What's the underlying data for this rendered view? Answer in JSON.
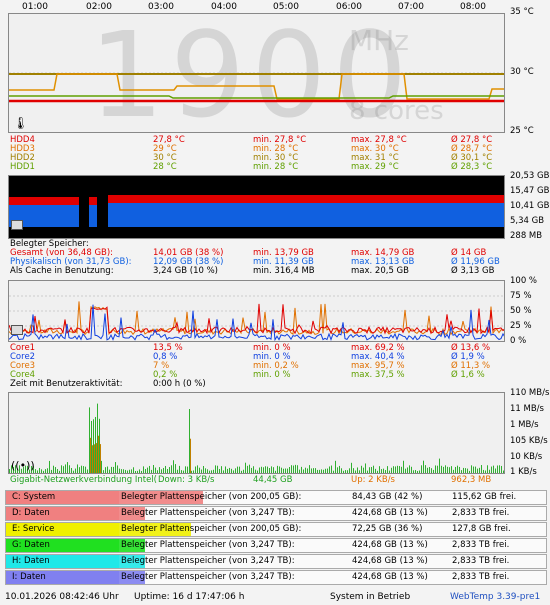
{
  "time_axis": [
    "01:00",
    "02:00",
    "03:00",
    "04:00",
    "05:00",
    "06:00",
    "07:00",
    "08:00"
  ],
  "cpu_display": {
    "freq": "1900",
    "unit": "MHz",
    "cores": "8 cores"
  },
  "temp": {
    "axis": [
      "35 °C",
      "30 °C",
      "25 °C"
    ],
    "rows": [
      {
        "name": "HDD4",
        "cur": "27,8 °C",
        "min": "min. 27,8 °C",
        "max": "max. 27,8 °C",
        "avg": "Ø 27,8 °C",
        "color": "#e00000"
      },
      {
        "name": "HDD3",
        "cur": "29 °C",
        "min": "min. 28 °C",
        "max": "max. 30 °C",
        "avg": "Ø 28,7 °C",
        "color": "#e07000"
      },
      {
        "name": "HDD2",
        "cur": "30 °C",
        "min": "min. 30 °C",
        "max": "max. 31 °C",
        "avg": "Ø 30,1 °C",
        "color": "#a08000"
      },
      {
        "name": "HDD1",
        "cur": "28 °C",
        "min": "min. 28 °C",
        "max": "max. 29 °C",
        "avg": "Ø 28,3 °C",
        "color": "#60a000"
      }
    ]
  },
  "memory": {
    "axis": [
      "20,53 GB",
      "15,47 GB",
      "10,41 GB",
      "5,34 GB",
      "288 MB"
    ],
    "title": "Belegter Speicher:",
    "rows": [
      {
        "name": "Gesamt (von 36,48 GB):",
        "cur": "14,01 GB (38 %)",
        "min": "min. 13,79 GB",
        "max": "max. 14,79 GB",
        "avg": "Ø 14 GB",
        "color": "#e00000"
      },
      {
        "name": "Physikalisch (von 31,73 GB):",
        "cur": "12,09 GB (38 %)",
        "min": "min. 11,39 GB",
        "max": "max. 13,13 GB",
        "avg": "Ø 11,96 GB",
        "color": "#1060e0"
      },
      {
        "name": "Als Cache in Benutzung:",
        "cur": "3,24 GB (10 %)",
        "min": "min. 316,4 MB",
        "max": "max. 20,5 GB",
        "avg": "Ø 3,13 GB",
        "color": "#000000"
      }
    ]
  },
  "cpu": {
    "axis": [
      "100 %",
      "75 %",
      "50 %",
      "25 %",
      "0 %"
    ],
    "rows": [
      {
        "name": "Core1",
        "cur": "13,5 %",
        "min": "min. 0 %",
        "max": "max. 69,2 %",
        "avg": "Ø 13,6 %",
        "color": "#e00000"
      },
      {
        "name": "Core2",
        "cur": "0,8 %",
        "min": "min. 0 %",
        "max": "max. 40,4 %",
        "avg": "Ø 1,9 %",
        "color": "#1040e0"
      },
      {
        "name": "Core3",
        "cur": "7 %",
        "min": "min. 0,2 %",
        "max": "max. 95,7 %",
        "avg": "Ø 11,3 %",
        "color": "#e07000"
      },
      {
        "name": "Core4",
        "cur": "0,2 %",
        "min": "min. 0 %",
        "max": "max. 37,5 %",
        "avg": "Ø 1,6 %",
        "color": "#60a000"
      }
    ],
    "activity_label": "Zeit mit Benutzeraktivität:",
    "activity_value": "0:00 h (0 %)"
  },
  "network": {
    "axis": [
      "110 MB/s",
      "11 MB/s",
      "1 MB/s",
      "105 KB/s",
      "10 KB/s",
      "1 KB/s"
    ],
    "name": "Gigabit-Netzwerkverbindung Intel(",
    "down": "Down: 3 KB/s",
    "down_total": "44,45 GB",
    "up": "Up: 2 KB/s",
    "up_total": "962,3 MB"
  },
  "drives": [
    {
      "label": "C: System",
      "color": "#f08080",
      "info": "Belegter Plattenspeicher (von 200,05 GB):",
      "used": "84,43 GB (42 %)",
      "free": "115,62 GB frei.",
      "pct": 42
    },
    {
      "label": "D: Daten",
      "color": "#f08080",
      "info": "Belegter Plattenspeicher (von 3,247 TB):",
      "used": "424,68 GB (13 %)",
      "free": "2,833 TB frei.",
      "pct": 13
    },
    {
      "label": "E: Service",
      "color": "#f0f000",
      "info": "Belegter Plattenspeicher (von 200,05 GB):",
      "used": "72,25 GB (36 %)",
      "free": "127,8 GB frei.",
      "pct": 36
    },
    {
      "label": "G: Daten",
      "color": "#20e020",
      "info": "Belegter Plattenspeicher (von 3,247 TB):",
      "used": "424,68 GB (13 %)",
      "free": "2,833 TB frei.",
      "pct": 13
    },
    {
      "label": "H: Daten",
      "color": "#20e8e8",
      "info": "Belegter Plattenspeicher (von 3,247 TB):",
      "used": "424,68 GB (13 %)",
      "free": "2,833 TB frei.",
      "pct": 13
    },
    {
      "label": "I: Daten",
      "color": "#8080f0",
      "info": "Belegter Plattenspeicher (von 3,247 TB):",
      "used": "424,68 GB (13 %)",
      "free": "2,833 TB frei.",
      "pct": 13
    }
  ],
  "status": {
    "datetime": "10.01.2026 08:42:46 Uhr",
    "uptime": "Uptime: 16 d 17:47:06 h",
    "state": "System in Betrieb",
    "version": "WebTemp 3.39-pre1"
  }
}
